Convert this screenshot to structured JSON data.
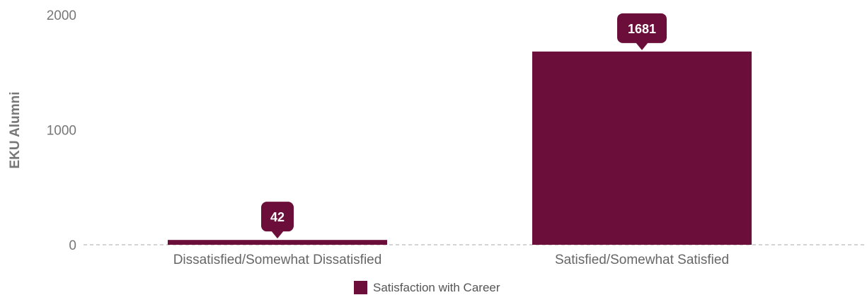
{
  "chart_data": {
    "type": "bar",
    "categories": [
      "Dissatisfied/Somewhat Dissatisfied",
      "Satisfied/Somewhat Satisfied"
    ],
    "series": [
      {
        "name": "Satisfaction with Career",
        "values": [
          42,
          1681
        ],
        "color": "#6b0f3a"
      }
    ],
    "data_labels": [
      "42",
      "1681"
    ],
    "ylabel": "EKU Alumni",
    "ylim": [
      0,
      2000
    ],
    "yticks": [
      0,
      1000,
      2000
    ],
    "ytick_labels": [
      "0",
      "1000",
      "2000"
    ],
    "grid": false,
    "baseline": "dashed",
    "legend": "bottom-center",
    "label_text_color": "#ffffff"
  }
}
